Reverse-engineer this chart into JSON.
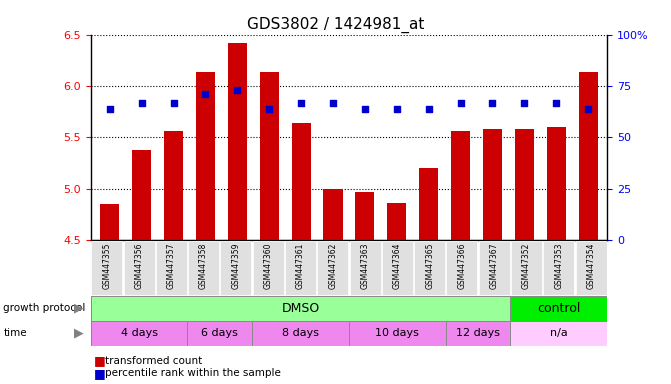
{
  "title": "GDS3802 / 1424981_at",
  "samples": [
    "GSM447355",
    "GSM447356",
    "GSM447357",
    "GSM447358",
    "GSM447359",
    "GSM447360",
    "GSM447361",
    "GSM447362",
    "GSM447363",
    "GSM447364",
    "GSM447365",
    "GSM447366",
    "GSM447367",
    "GSM447352",
    "GSM447353",
    "GSM447354"
  ],
  "transformed_count": [
    4.85,
    5.38,
    5.56,
    6.14,
    6.42,
    6.14,
    5.64,
    5.0,
    4.97,
    4.86,
    5.2,
    5.56,
    5.58,
    5.58,
    5.6,
    6.14
  ],
  "percentile_values": [
    5.78,
    5.83,
    5.83,
    5.92,
    5.96,
    5.78,
    5.83,
    5.83,
    5.78,
    5.78,
    5.78,
    5.83,
    5.83,
    5.83,
    5.83,
    5.78
  ],
  "ylim_left": [
    4.5,
    6.5
  ],
  "ylim_right": [
    0,
    100
  ],
  "yticks_left": [
    4.5,
    5.0,
    5.5,
    6.0,
    6.5
  ],
  "yticks_right": [
    0,
    25,
    50,
    75,
    100
  ],
  "bar_color": "#cc0000",
  "dot_color": "#0000cc",
  "dmso_color": "#99ff99",
  "control_color": "#00ee00",
  "time_dmso_color": "#ee88ee",
  "time_na_color": "#ffccff",
  "sample_bg_color": "#e0e0e0",
  "n_samples": 16,
  "dmso_count": 13,
  "control_count": 3,
  "time_groups_starts": [
    0,
    3,
    5,
    8,
    11,
    13
  ],
  "time_groups_ends": [
    3,
    5,
    8,
    11,
    13,
    16
  ],
  "time_labels": [
    "4 days",
    "6 days",
    "8 days",
    "10 days",
    "12 days",
    "n/a"
  ]
}
